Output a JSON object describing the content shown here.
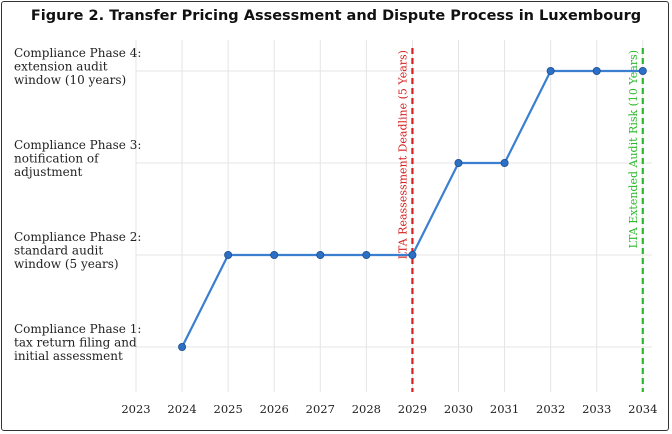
{
  "chart_data": {
    "type": "line",
    "title": "Figure 2. Transfer Pricing Assessment and Dispute Process in Luxembourg",
    "xlabel": "",
    "ylabel": "",
    "x_ticks": [
      2023,
      2024,
      2025,
      2026,
      2027,
      2028,
      2029,
      2030,
      2031,
      2032,
      2033,
      2034
    ],
    "xlim": [
      2023,
      2034.2
    ],
    "y_categories": [
      [
        "Compliance Phase 1:",
        "tax return filing and",
        "initial assessment"
      ],
      [
        "Compliance Phase 2:",
        "standard audit",
        "window (5 years)"
      ],
      [
        "Compliance Phase 3:",
        "notification of",
        "adjustment"
      ],
      [
        "Compliance Phase 4:",
        "extension audit",
        "window (10 years)"
      ]
    ],
    "series": [
      {
        "x": [
          2024,
          2025,
          2026,
          2027,
          2028,
          2029,
          2030,
          2031,
          2032,
          2033,
          2034
        ],
        "y": [
          1,
          2,
          2,
          2,
          2,
          2,
          3,
          3,
          4,
          4,
          4
        ],
        "color": "#3a7fd0"
      }
    ],
    "vlines": [
      {
        "x": 2029,
        "label": "LTA Reassessment Deadline (5 Years)",
        "color": "#d42020"
      },
      {
        "x": 2034,
        "label": "LTA Extended Audit Risk (10 Years)",
        "color": "#2db82d"
      }
    ],
    "grid": true
  }
}
